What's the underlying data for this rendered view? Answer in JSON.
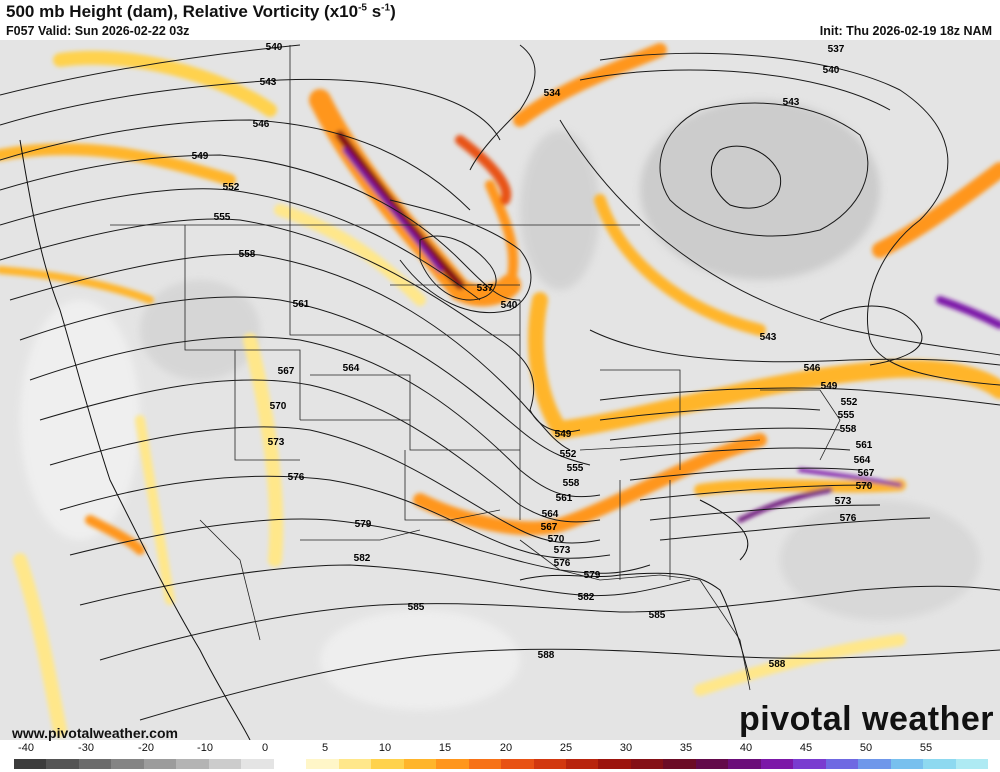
{
  "header": {
    "title_main": "500 mb Height (dam), Relative Vorticity (x10",
    "title_exp": "-5",
    "title_unit": " s",
    "title_exp2": "-1",
    "title_close": ")",
    "valid": "F057 Valid: Sun 2026-02-22 03z",
    "init": "Init: Thu 2026-02-19 18z NAM"
  },
  "footer": {
    "website": "www.pivotalweather.com",
    "brand": "pivotal weather"
  },
  "colorbar": {
    "ticks": [
      "-40",
      "-30",
      "-20",
      "-10",
      "0",
      "5",
      "10",
      "15",
      "20",
      "25",
      "30",
      "35",
      "40",
      "45",
      "50",
      "55"
    ],
    "colors": [
      "#3c3c3c",
      "#545454",
      "#6c6c6c",
      "#848484",
      "#9c9c9c",
      "#b4b4b4",
      "#cccccc",
      "#e4e4e4",
      "#ffffff",
      "#fff6c8",
      "#ffe78a",
      "#ffd24d",
      "#ffb52b",
      "#ff961c",
      "#f77217",
      "#e85214",
      "#d2380f",
      "#b8240d",
      "#9c140d",
      "#851016",
      "#6c0b25",
      "#63094a",
      "#6b0d79",
      "#7c17a8",
      "#7a3bd0",
      "#6f69e2",
      "#6f97ea",
      "#78c0ee",
      "#8ed9f0",
      "#aeeaf3"
    ]
  },
  "height_labels": [
    {
      "text": "540",
      "id": "540-nw"
    },
    {
      "text": "543",
      "id": "543-nw"
    },
    {
      "text": "546",
      "id": "546-nw"
    },
    {
      "text": "549",
      "id": "549-nw"
    },
    {
      "text": "552",
      "id": "552-nw"
    },
    {
      "text": "555",
      "id": "555-nw"
    },
    {
      "text": "558",
      "id": "558-w"
    },
    {
      "text": "561",
      "id": "561-w"
    },
    {
      "text": "564",
      "id": "564-w"
    },
    {
      "text": "567",
      "id": "567-w"
    },
    {
      "text": "570",
      "id": "570-w"
    },
    {
      "text": "573",
      "id": "573-w"
    },
    {
      "text": "576",
      "id": "576-w"
    },
    {
      "text": "579",
      "id": "579-sw"
    },
    {
      "text": "582",
      "id": "582-sw"
    },
    {
      "text": "585",
      "id": "585-s"
    },
    {
      "text": "588",
      "id": "588-s"
    },
    {
      "text": "537",
      "id": "537-low"
    },
    {
      "text": "540",
      "id": "540-low"
    },
    {
      "text": "534",
      "id": "534-n"
    },
    {
      "text": "537",
      "id": "537-ne"
    },
    {
      "text": "540",
      "id": "540-ne"
    },
    {
      "text": "543",
      "id": "543-ne"
    },
    {
      "text": "543",
      "id": "543-e"
    },
    {
      "text": "546",
      "id": "546-e"
    },
    {
      "text": "549",
      "id": "549-e"
    },
    {
      "text": "552",
      "id": "552-e"
    },
    {
      "text": "555",
      "id": "555-e"
    },
    {
      "text": "558",
      "id": "558-e"
    },
    {
      "text": "561",
      "id": "561-e"
    },
    {
      "text": "564",
      "id": "564-e"
    },
    {
      "text": "567",
      "id": "567-e"
    },
    {
      "text": "570",
      "id": "570-e"
    },
    {
      "text": "573",
      "id": "573-e"
    },
    {
      "text": "576",
      "id": "576-e"
    },
    {
      "text": "549",
      "id": "549-c"
    },
    {
      "text": "552",
      "id": "552-c"
    },
    {
      "text": "555",
      "id": "555-c"
    },
    {
      "text": "558",
      "id": "558-c"
    },
    {
      "text": "561",
      "id": "561-c"
    },
    {
      "text": "564",
      "id": "564-c"
    },
    {
      "text": "567",
      "id": "567-c"
    },
    {
      "text": "570",
      "id": "570-c"
    },
    {
      "text": "573",
      "id": "573-c"
    },
    {
      "text": "576",
      "id": "576-c"
    },
    {
      "text": "579",
      "id": "579-c"
    },
    {
      "text": "582",
      "id": "582-c"
    },
    {
      "text": "585",
      "id": "585-c"
    },
    {
      "text": "588",
      "id": "588-se"
    }
  ]
}
